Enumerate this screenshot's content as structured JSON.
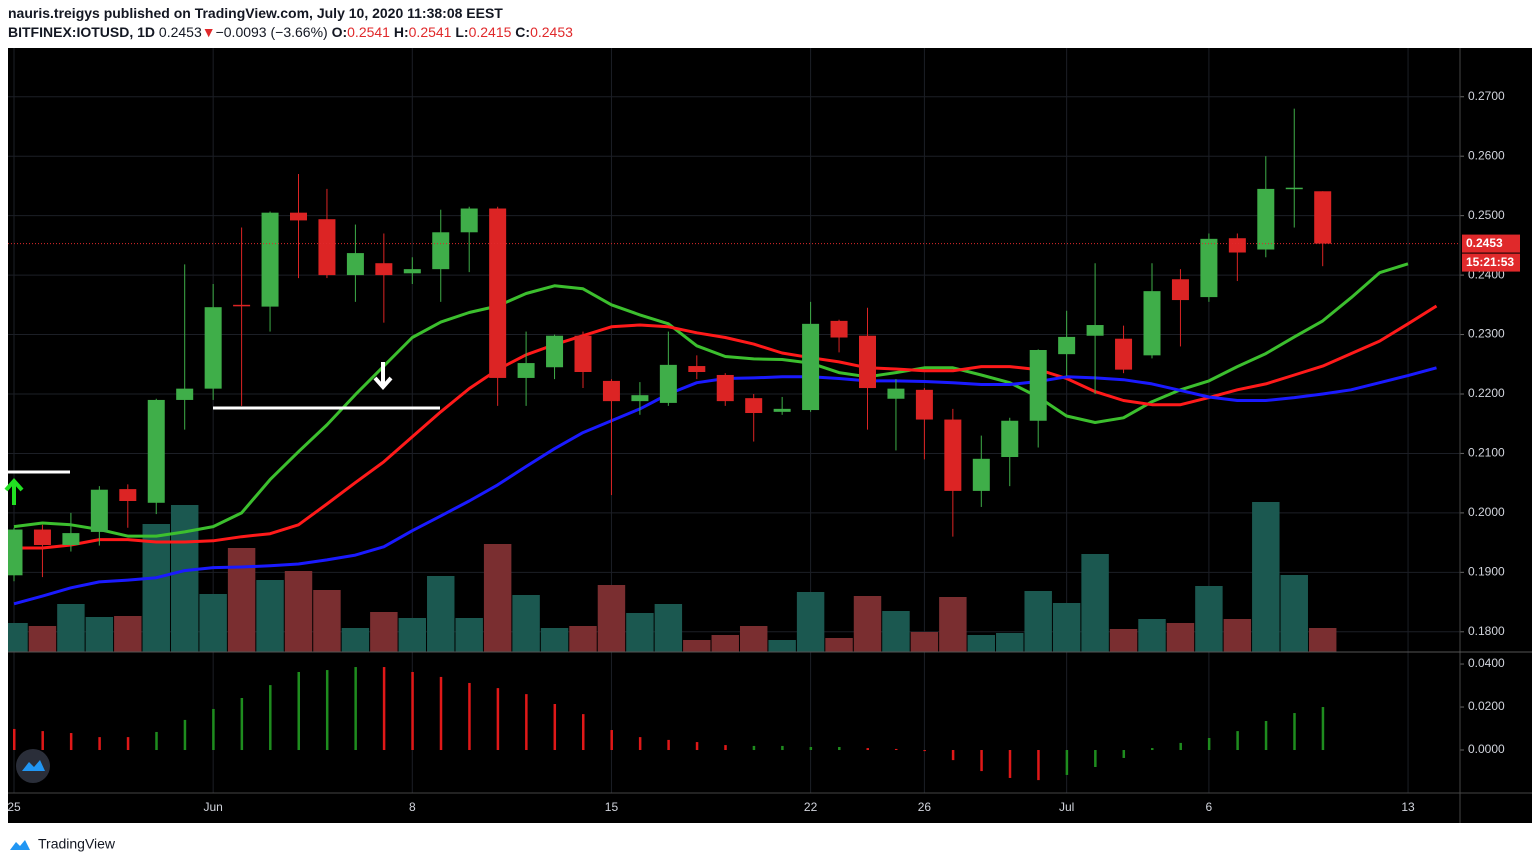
{
  "header": {
    "publisher": "nauris.treigys published on TradingView.com, July 10, 2020 11:38:08 EEST",
    "symbol": "BITFINEX:IOTUSD, 1D",
    "price": "0.2453",
    "arrow": "▼",
    "change": "−0.0093 (−3.66%)",
    "o_label": "O:",
    "o": "0.2541",
    "h_label": "H:",
    "h": "0.2541",
    "l_label": "L:",
    "l": "0.2415",
    "c_label": "C:",
    "c": "0.2453"
  },
  "footer": {
    "brand": "TradingView"
  },
  "chart_data": [
    {
      "type": "candlestick",
      "categories": [
        "25",
        null,
        null,
        null,
        null,
        null,
        null,
        "Jun",
        null,
        null,
        null,
        null,
        null,
        null,
        "8",
        null,
        null,
        null,
        null,
        null,
        null,
        "15",
        null,
        null,
        null,
        null,
        null,
        null,
        "22",
        null,
        null,
        null,
        "26",
        null,
        null,
        null,
        null,
        "Jul",
        null,
        null,
        null,
        null,
        "6",
        null,
        null,
        null,
        null,
        null,
        null,
        "13",
        null
      ],
      "open": [
        0.1895,
        0.1972,
        0.1946,
        0.1968,
        0.204,
        0.2017,
        0.219,
        0.2209,
        0.235,
        0.2347,
        0.2505,
        0.2494,
        0.24,
        0.242,
        0.2403,
        0.241,
        0.2472,
        0.2512,
        0.2227,
        0.2245,
        0.2298,
        0.2222,
        0.2188,
        0.2185,
        0.2247,
        0.2232,
        0.2193,
        0.217,
        0.2173,
        0.2323,
        0.2298,
        0.2192,
        0.2207,
        0.2157,
        0.2037,
        0.2094,
        0.2155,
        0.2267,
        0.2298,
        0.2293,
        0.2265,
        0.2393,
        0.2363,
        0.2462,
        0.2443,
        0.2545,
        0.2541,
        null,
        null,
        null,
        null
      ],
      "high": [
        0.1975,
        0.198,
        0.2,
        0.2045,
        0.2048,
        0.2192,
        0.2418,
        0.2385,
        0.248,
        0.2507,
        0.257,
        0.2545,
        0.2485,
        0.247,
        0.243,
        0.251,
        0.2515,
        0.2515,
        0.2305,
        0.23,
        0.2305,
        0.2225,
        0.222,
        0.2305,
        0.2265,
        0.2235,
        0.22,
        0.2195,
        0.2355,
        0.2325,
        0.2345,
        0.2225,
        0.221,
        0.2175,
        0.213,
        0.216,
        0.2275,
        0.234,
        0.242,
        0.2315,
        0.242,
        0.241,
        0.247,
        0.247,
        0.26,
        0.268,
        0.2541,
        null,
        null,
        null,
        null
      ],
      "low": [
        0.1885,
        0.1892,
        0.1935,
        0.1945,
        0.1975,
        0.1998,
        0.214,
        0.219,
        0.218,
        0.2305,
        0.2395,
        0.2395,
        0.2355,
        0.232,
        0.2385,
        0.2355,
        0.2405,
        0.218,
        0.218,
        0.2225,
        0.221,
        0.203,
        0.2165,
        0.218,
        0.2225,
        0.218,
        0.212,
        0.2165,
        0.217,
        0.227,
        0.214,
        0.2105,
        0.209,
        0.196,
        0.201,
        0.2045,
        0.211,
        0.223,
        0.22,
        0.2235,
        0.226,
        0.228,
        0.2355,
        0.239,
        0.243,
        0.248,
        0.2415,
        null,
        null,
        null,
        null
      ],
      "close": [
        0.1972,
        0.1946,
        0.1966,
        0.2039,
        0.202,
        0.219,
        0.2209,
        0.2346,
        0.2349,
        0.2505,
        0.2492,
        0.24,
        0.2437,
        0.24,
        0.241,
        0.2472,
        0.2512,
        0.2227,
        0.2252,
        0.2298,
        0.2237,
        0.2188,
        0.2198,
        0.2249,
        0.2237,
        0.2188,
        0.2168,
        0.2175,
        0.2318,
        0.2295,
        0.221,
        0.2209,
        0.2157,
        0.2037,
        0.2091,
        0.2155,
        0.2274,
        0.2296,
        0.2316,
        0.2241,
        0.2373,
        0.2358,
        0.2461,
        0.2438,
        0.2545,
        0.2547,
        0.2453,
        null,
        null,
        null,
        null
      ],
      "up_color": "#3fae49",
      "down_color": "#dc2424",
      "volume": [
        29,
        26,
        48,
        35,
        36,
        128,
        147,
        58,
        104,
        72,
        81,
        62,
        24,
        40,
        34,
        76,
        34,
        108,
        57,
        24,
        26,
        67,
        39,
        48,
        12,
        17,
        26,
        12,
        60,
        14,
        56,
        41,
        20,
        55,
        17,
        19,
        61,
        49,
        98,
        23,
        33,
        29,
        66,
        33,
        150,
        77,
        24,
        null,
        null,
        null,
        null
      ],
      "volume_lim": [
        0,
        604
      ],
      "volume_up_color": "#1b5850",
      "volume_down_color": "#7a2e30",
      "series": [
        {
          "color": "#3cbf2e",
          "values": [
            0.1977,
            0.1983,
            0.198,
            0.1972,
            0.1961,
            0.1961,
            0.1968,
            0.1977,
            0.2,
            0.2056,
            0.2103,
            0.2148,
            0.2199,
            0.2247,
            0.2295,
            0.2321,
            0.2337,
            0.2348,
            0.2369,
            0.2382,
            0.2377,
            0.235,
            0.2333,
            0.2318,
            0.2281,
            0.2263,
            0.2259,
            0.2258,
            0.2252,
            0.2236,
            0.2229,
            0.2236,
            0.2244,
            0.2244,
            0.2232,
            0.2219,
            0.2195,
            0.2163,
            0.2152,
            0.216,
            0.2187,
            0.2207,
            0.2222,
            0.2246,
            0.2268,
            0.2296,
            0.2323,
            0.2362,
            0.2404,
            0.2419,
            null
          ]
        },
        {
          "color": "#ff1a1a",
          "values": [
            0.1941,
            0.1941,
            0.1946,
            0.1955,
            0.1955,
            0.1951,
            0.1951,
            0.1953,
            0.196,
            0.1965,
            0.198,
            0.2015,
            0.2051,
            0.2086,
            0.2128,
            0.217,
            0.2209,
            0.2241,
            0.2266,
            0.2283,
            0.2298,
            0.2313,
            0.2316,
            0.2313,
            0.2303,
            0.2295,
            0.2284,
            0.2269,
            0.2261,
            0.2254,
            0.2244,
            0.2242,
            0.2239,
            0.2239,
            0.2246,
            0.2246,
            0.2241,
            0.2226,
            0.2204,
            0.2189,
            0.2182,
            0.2182,
            0.2194,
            0.2207,
            0.2217,
            0.2232,
            0.2247,
            0.2268,
            0.2289,
            0.2318,
            0.2348
          ]
        },
        {
          "color": "#1a1aff",
          "values": [
            0.1847,
            0.186,
            0.1874,
            0.1884,
            0.1887,
            0.1891,
            0.1903,
            0.1908,
            0.1909,
            0.1911,
            0.1914,
            0.1921,
            0.1929,
            0.1943,
            0.197,
            0.1995,
            0.202,
            0.2047,
            0.2078,
            0.2108,
            0.2135,
            0.2155,
            0.2175,
            0.22,
            0.2219,
            0.2226,
            0.2227,
            0.2229,
            0.2229,
            0.2226,
            0.2222,
            0.2222,
            0.2221,
            0.2219,
            0.2216,
            0.2216,
            0.2221,
            0.2229,
            0.2227,
            0.2224,
            0.2217,
            0.2206,
            0.2195,
            0.2189,
            0.2189,
            0.2194,
            0.22,
            0.2207,
            0.2219,
            0.2231,
            0.2244
          ]
        }
      ],
      "ylim": [
        0.1766,
        0.2782
      ],
      "yticks": [
        {
          "value": 0.18,
          "label": "0.1800"
        },
        {
          "value": 0.19,
          "label": "0.1900"
        },
        {
          "value": 0.2,
          "label": "0.2000"
        },
        {
          "value": 0.21,
          "label": "0.2100"
        },
        {
          "value": 0.22,
          "label": "0.2200"
        },
        {
          "value": 0.23,
          "label": "0.2300"
        },
        {
          "value": 0.24,
          "label": "0.2400"
        },
        {
          "value": 0.25,
          "label": "0.2500"
        },
        {
          "value": 0.26,
          "label": "0.2600"
        },
        {
          "value": 0.27,
          "label": "0.2700"
        }
      ],
      "last_price": {
        "value": 0.2453,
        "label": "0.2453"
      },
      "countdown": "15:21:53",
      "last_color": "#e0292b",
      "grid": true
    },
    {
      "type": "histogram",
      "values": [
        0.0098,
        0.0088,
        0.0079,
        0.006,
        0.006,
        0.0084,
        0.014,
        0.0191,
        0.0242,
        0.0302,
        0.0363,
        0.0372,
        0.0386,
        0.0386,
        0.0363,
        0.034,
        0.0312,
        0.0288,
        0.026,
        0.0214,
        0.0167,
        0.0093,
        0.006,
        0.0047,
        0.0037,
        0.0023,
        0.0019,
        0.0019,
        0.0014,
        0.0014,
        0.0009,
        0.0005,
        -0.0005,
        -0.0047,
        -0.0098,
        -0.013,
        -0.014,
        -0.0116,
        -0.0079,
        -0.0037,
        0.0009,
        0.0033,
        0.0056,
        0.0088,
        0.0135,
        0.0172,
        0.02,
        null,
        null,
        null,
        null
      ],
      "colors": [
        "#e01818",
        "#e01818",
        "#e01818",
        "#e01818",
        "#e01818",
        "#1e8c1e",
        "#1e8c1e",
        "#1e8c1e",
        "#1e8c1e",
        "#1e8c1e",
        "#1e8c1e",
        "#1e8c1e",
        "#1e8c1e",
        "#e01818",
        "#e01818",
        "#e01818",
        "#e01818",
        "#e01818",
        "#e01818",
        "#e01818",
        "#e01818",
        "#e01818",
        "#e01818",
        "#e01818",
        "#e01818",
        "#e01818",
        "#1e8c1e",
        "#1e8c1e",
        "#1e8c1e",
        "#1e8c1e",
        "#e01818",
        "#e01818",
        "#e01818",
        "#e01818",
        "#e01818",
        "#e01818",
        "#e01818",
        "#1e8c1e",
        "#1e8c1e",
        "#1e8c1e",
        "#1e8c1e",
        "#1e8c1e",
        "#1e8c1e",
        "#1e8c1e",
        "#1e8c1e",
        "#1e8c1e",
        "#1e8c1e",
        null,
        null,
        null,
        null
      ],
      "ylim": [
        -0.02,
        0.0456
      ],
      "yticks": [
        {
          "value": 0.0,
          "label": "0.0000"
        },
        {
          "value": 0.02,
          "label": "0.0200"
        },
        {
          "value": 0.04,
          "label": "0.0400"
        }
      ]
    }
  ]
}
